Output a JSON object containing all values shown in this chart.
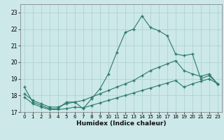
{
  "xlabel": "Humidex (Indice chaleur)",
  "x_values": [
    0,
    1,
    2,
    3,
    4,
    5,
    6,
    7,
    8,
    9,
    10,
    11,
    12,
    13,
    14,
    15,
    16,
    17,
    18,
    19,
    20,
    21,
    22,
    23
  ],
  "line_top": [
    18.5,
    17.6,
    17.4,
    17.2,
    17.2,
    17.6,
    17.6,
    17.2,
    17.8,
    18.4,
    19.3,
    20.6,
    21.8,
    22.0,
    22.8,
    22.1,
    21.9,
    21.6,
    20.5,
    20.4,
    20.5,
    19.0,
    19.2,
    18.7
  ],
  "line_mid": [
    18.1,
    17.7,
    17.5,
    17.3,
    17.3,
    17.5,
    17.6,
    17.7,
    17.9,
    18.1,
    18.3,
    18.5,
    18.7,
    18.9,
    19.2,
    19.5,
    19.7,
    19.9,
    20.1,
    19.5,
    19.3,
    19.15,
    19.3,
    18.7
  ],
  "line_bot": [
    17.9,
    17.5,
    17.3,
    17.15,
    17.15,
    17.2,
    17.3,
    17.25,
    17.4,
    17.55,
    17.7,
    17.85,
    18.0,
    18.15,
    18.3,
    18.45,
    18.6,
    18.75,
    18.9,
    18.5,
    18.7,
    18.85,
    19.0,
    18.7
  ],
  "bg_color": "#cce8e8",
  "grid_color": "#aacfcf",
  "line_color": "#2a7a6a",
  "ylim": [
    17.0,
    23.5
  ],
  "xlim": [
    -0.5,
    23.5
  ],
  "yticks": [
    17,
    18,
    19,
    20,
    21,
    22,
    23
  ],
  "xticks": [
    0,
    1,
    2,
    3,
    4,
    5,
    6,
    7,
    8,
    9,
    10,
    11,
    12,
    13,
    14,
    15,
    16,
    17,
    18,
    19,
    20,
    21,
    22,
    23
  ],
  "xlabel_fontsize": 6.5,
  "tick_labelsize": 5.5
}
